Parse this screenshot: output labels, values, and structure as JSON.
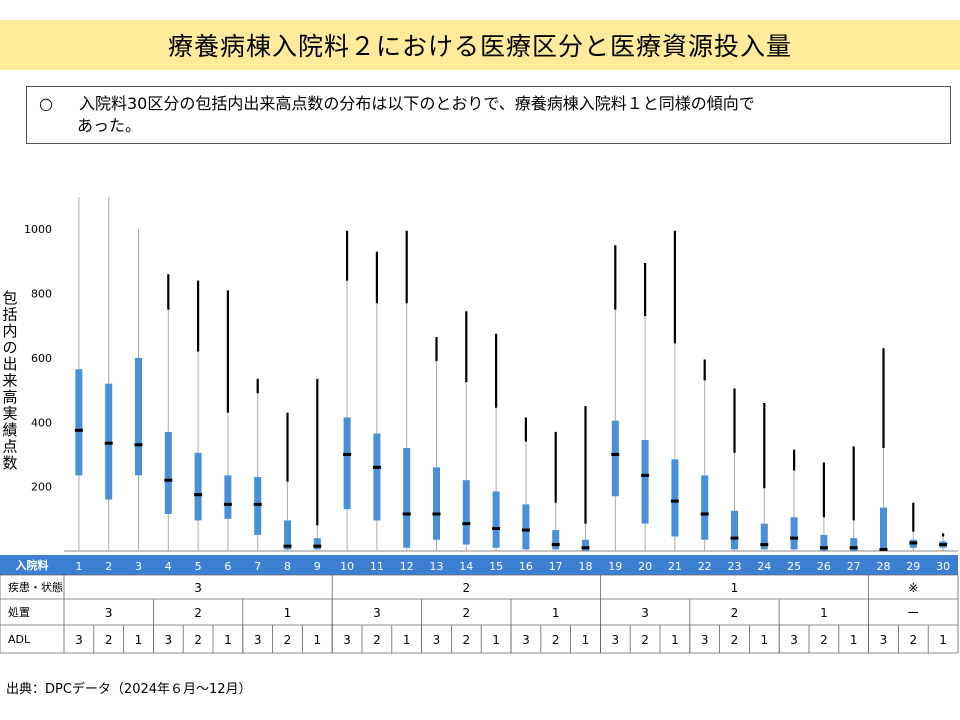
{
  "title": "療養病棟入院料２における医療区分と医療資源投入量",
  "note": {
    "mark": "○",
    "line1": "入院料30区分の包括内出来高点数の分布は以下のとおりで、療養病棟入院料１と同様の傾向で",
    "line2": "あった。"
  },
  "source": "出典：DPCデータ（2024年６月～12月）",
  "colors": {
    "box": "#4a90d9",
    "header": "#3d7fd3",
    "whisker": "#aaaaaa",
    "outlier": "#000000"
  },
  "chart_data": {
    "type": "boxplot",
    "ylabel": "包括内の出来高実績点数",
    "ylim": [
      0,
      1100
    ],
    "yticks": [
      200,
      400,
      600,
      800,
      1000
    ],
    "categories": [
      "1",
      "2",
      "3",
      "4",
      "5",
      "6",
      "7",
      "8",
      "9",
      "10",
      "11",
      "12",
      "13",
      "14",
      "15",
      "16",
      "17",
      "18",
      "19",
      "20",
      "21",
      "22",
      "23",
      "24",
      "25",
      "26",
      "27",
      "28",
      "29",
      "30"
    ],
    "boxes": [
      {
        "q1": 235,
        "median": 375,
        "q3": 565,
        "whisker_top": 1100,
        "outlier_max": 1100
      },
      {
        "q1": 160,
        "median": 335,
        "q3": 520,
        "whisker_top": 1100,
        "outlier_max": 1100
      },
      {
        "q1": 235,
        "median": 330,
        "q3": 600,
        "whisker_top": 1000,
        "outlier_max": 1000
      },
      {
        "q1": 115,
        "median": 220,
        "q3": 370,
        "whisker_top": 750,
        "outlier_max": 860
      },
      {
        "q1": 95,
        "median": 175,
        "q3": 305,
        "whisker_top": 620,
        "outlier_max": 840
      },
      {
        "q1": 100,
        "median": 145,
        "q3": 235,
        "whisker_top": 430,
        "outlier_max": 810
      },
      {
        "q1": 50,
        "median": 145,
        "q3": 230,
        "whisker_top": 490,
        "outlier_max": 535
      },
      {
        "q1": 5,
        "median": 15,
        "q3": 95,
        "whisker_top": 215,
        "outlier_max": 430
      },
      {
        "q1": 5,
        "median": 15,
        "q3": 40,
        "whisker_top": 80,
        "outlier_max": 535
      },
      {
        "q1": 130,
        "median": 300,
        "q3": 415,
        "whisker_top": 840,
        "outlier_max": 995
      },
      {
        "q1": 95,
        "median": 260,
        "q3": 365,
        "whisker_top": 770,
        "outlier_max": 930
      },
      {
        "q1": 10,
        "median": 115,
        "q3": 320,
        "whisker_top": 770,
        "outlier_max": 995
      },
      {
        "q1": 35,
        "median": 115,
        "q3": 260,
        "whisker_top": 590,
        "outlier_max": 665
      },
      {
        "q1": 20,
        "median": 85,
        "q3": 220,
        "whisker_top": 525,
        "outlier_max": 745
      },
      {
        "q1": 10,
        "median": 70,
        "q3": 185,
        "whisker_top": 445,
        "outlier_max": 675
      },
      {
        "q1": 5,
        "median": 65,
        "q3": 145,
        "whisker_top": 340,
        "outlier_max": 415
      },
      {
        "q1": 5,
        "median": 20,
        "q3": 65,
        "whisker_top": 150,
        "outlier_max": 370
      },
      {
        "q1": 0,
        "median": 10,
        "q3": 35,
        "whisker_top": 85,
        "outlier_max": 450
      },
      {
        "q1": 170,
        "median": 300,
        "q3": 405,
        "whisker_top": 750,
        "outlier_max": 950
      },
      {
        "q1": 85,
        "median": 235,
        "q3": 345,
        "whisker_top": 730,
        "outlier_max": 895
      },
      {
        "q1": 45,
        "median": 155,
        "q3": 285,
        "whisker_top": 645,
        "outlier_max": 995
      },
      {
        "q1": 35,
        "median": 115,
        "q3": 235,
        "whisker_top": 530,
        "outlier_max": 595
      },
      {
        "q1": 5,
        "median": 40,
        "q3": 125,
        "whisker_top": 305,
        "outlier_max": 505
      },
      {
        "q1": 5,
        "median": 20,
        "q3": 85,
        "whisker_top": 195,
        "outlier_max": 460
      },
      {
        "q1": 5,
        "median": 40,
        "q3": 105,
        "whisker_top": 250,
        "outlier_max": 315
      },
      {
        "q1": 0,
        "median": 10,
        "q3": 50,
        "whisker_top": 105,
        "outlier_max": 275
      },
      {
        "q1": 0,
        "median": 10,
        "q3": 40,
        "whisker_top": 95,
        "outlier_max": 325
      },
      {
        "q1": 0,
        "median": 5,
        "q3": 135,
        "whisker_top": 320,
        "outlier_max": 630
      },
      {
        "q1": 10,
        "median": 25,
        "q3": 35,
        "whisker_top": 60,
        "outlier_max": 150
      },
      {
        "q1": 10,
        "median": 20,
        "q3": 30,
        "whisker_top": 45,
        "outlier_max": 55
      }
    ],
    "table": {
      "row_labels": [
        "入院料",
        "疾患・状態",
        "処置",
        "ADL"
      ],
      "disease_groups": [
        "3",
        "2",
        "1",
        "※"
      ],
      "treatment_groups": [
        "3",
        "2",
        "1",
        "3",
        "2",
        "1",
        "3",
        "2",
        "1",
        "ー"
      ],
      "adl": [
        "3",
        "2",
        "1",
        "3",
        "2",
        "1",
        "3",
        "2",
        "1",
        "3",
        "2",
        "1",
        "3",
        "2",
        "1",
        "3",
        "2",
        "1",
        "3",
        "2",
        "1",
        "3",
        "2",
        "1",
        "3",
        "2",
        "1",
        "3",
        "2",
        "1"
      ]
    }
  }
}
